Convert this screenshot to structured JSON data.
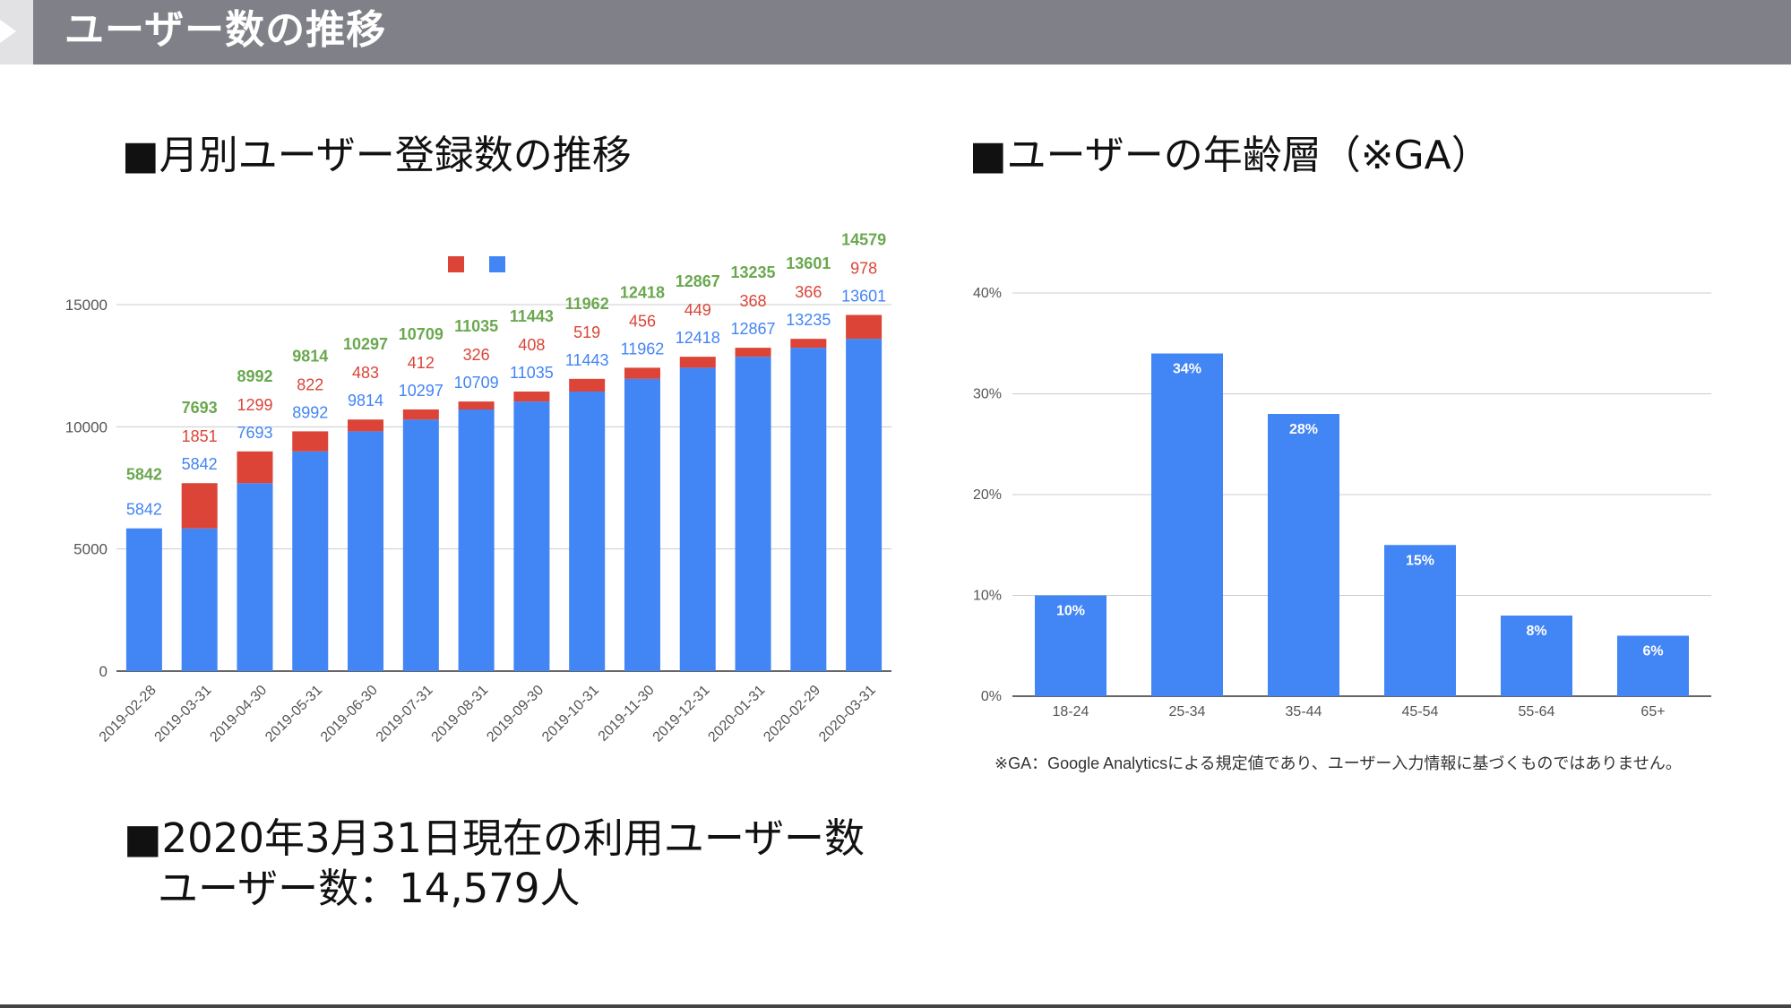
{
  "header": {
    "title": "ユーザー数の推移"
  },
  "left_section": {
    "title": "■月別ユーザー登録数の推移"
  },
  "right_section": {
    "title": "■ユーザーの年齢層（※GA）"
  },
  "summary": {
    "line1": "■2020年3月31日現在の利用ユーザー数",
    "line2": "ユーザー数：14,579人"
  },
  "footnote": "※GA：Google Analyticsによる規定値であり、ユーザー入力情報に基づくものではありません。",
  "colors": {
    "blue": "#4285f4",
    "red": "#db4437",
    "green": "#6aa84f",
    "grid": "#cccccc",
    "axis": "#333333"
  },
  "chart_data": [
    {
      "type": "bar",
      "stacked": true,
      "title": "月別ユーザー登録数の推移",
      "categories": [
        "2019-02-28",
        "2019-03-31",
        "2019-04-30",
        "2019-05-31",
        "2019-06-30",
        "2019-07-31",
        "2019-08-31",
        "2019-09-30",
        "2019-10-31",
        "2019-11-30",
        "2019-12-31",
        "2020-01-31",
        "2020-02-29",
        "2020-03-31"
      ],
      "series": [
        {
          "name": "",
          "color": "#4285f4",
          "values": [
            5842,
            5842,
            7693,
            8992,
            9814,
            10297,
            10709,
            11035,
            11443,
            11962,
            12418,
            12867,
            13235,
            13601
          ]
        },
        {
          "name": "",
          "color": "#db4437",
          "values": [
            0,
            1851,
            1299,
            822,
            483,
            412,
            326,
            408,
            519,
            456,
            449,
            368,
            366,
            978
          ]
        }
      ],
      "labels": {
        "base": [
          "5842",
          "5842",
          "7693",
          "8992",
          "9814",
          "10297",
          "10709",
          "11035",
          "11443",
          "11962",
          "12418",
          "12867",
          "13235",
          "13601"
        ],
        "increment": [
          "",
          "1851",
          "1299",
          "822",
          "483",
          "412",
          "326",
          "408",
          "519",
          "456",
          "449",
          "368",
          "366",
          "978"
        ],
        "total": [
          "5842",
          "7693",
          "8992",
          "9814",
          "10297",
          "10709",
          "11035",
          "11443",
          "11962",
          "12418",
          "12867",
          "13235",
          "13601",
          "14579"
        ]
      },
      "ylim": [
        0,
        15000
      ],
      "yticks": [
        0,
        5000,
        10000,
        15000
      ],
      "ytick_labels": [
        "0",
        "5000",
        "10000",
        "15000"
      ],
      "legend_position": "top-center",
      "grid": true,
      "xlabel": "",
      "ylabel": ""
    },
    {
      "type": "bar",
      "title": "ユーザーの年齢層（※GA）",
      "categories": [
        "18-24",
        "25-34",
        "35-44",
        "45-54",
        "55-64",
        "65+"
      ],
      "values": [
        10,
        34,
        28,
        15,
        8,
        6
      ],
      "value_labels": [
        "10%",
        "34%",
        "28%",
        "15%",
        "8%",
        "6%"
      ],
      "ylim": [
        0,
        40
      ],
      "yticks": [
        0,
        10,
        20,
        30,
        40
      ],
      "ytick_labels": [
        "0%",
        "10%",
        "20%",
        "30%",
        "40%"
      ],
      "grid": true,
      "xlabel": "",
      "ylabel": ""
    }
  ]
}
